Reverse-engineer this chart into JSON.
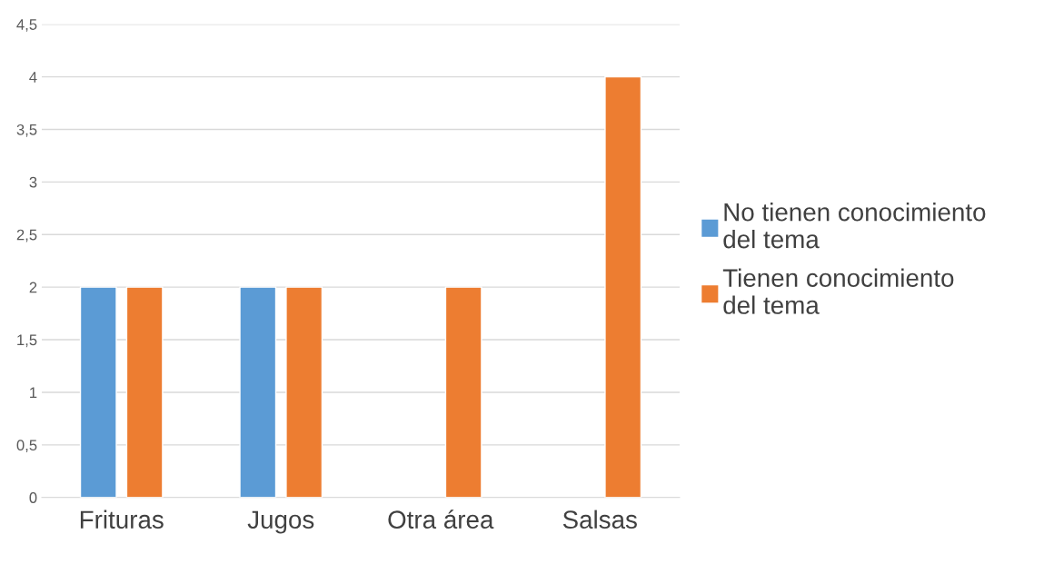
{
  "chart_data": {
    "type": "bar",
    "categories": [
      "Frituras",
      "Jugos",
      "Otra área",
      "Salsas"
    ],
    "series": [
      {
        "name": "No tienen conocimiento del tema",
        "color": "#5b9bd5",
        "values": [
          2,
          2,
          null,
          null
        ]
      },
      {
        "name": "Tienen conocimiento del tema",
        "color": "#ed7d31",
        "values": [
          2,
          2,
          2,
          4
        ]
      }
    ],
    "ylim": [
      0,
      4.5
    ],
    "yticks": [
      0,
      {
        "value": 0.5,
        "label": "0,5"
      },
      1,
      {
        "value": 1.5,
        "label": "1,5"
      },
      2,
      {
        "value": 2.5,
        "label": "2,5"
      },
      3,
      {
        "value": 3.5,
        "label": "3,5"
      },
      4,
      {
        "value": 4.5,
        "label": "4,5"
      }
    ],
    "grid": "y",
    "legend": "right"
  }
}
